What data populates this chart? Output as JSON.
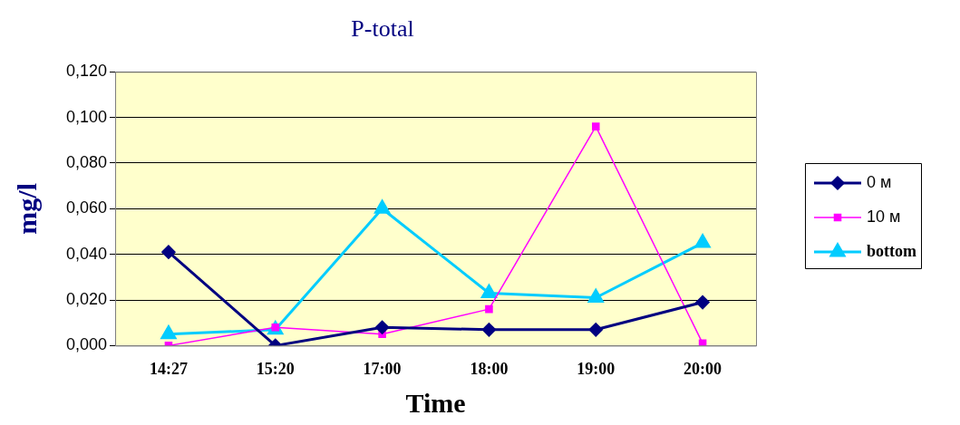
{
  "chart_data": {
    "type": "line",
    "title": "P-total",
    "xlabel": "Time",
    "ylabel": "mg/l",
    "categories": [
      "14:27",
      "15:20",
      "17:00",
      "18:00",
      "19:00",
      "20:00"
    ],
    "series": [
      {
        "name": "0 м",
        "color": "#000080",
        "marker": "diamond",
        "values": [
          0.041,
          0,
          0.008,
          0.007,
          0.007,
          0.019
        ]
      },
      {
        "name": "10 м",
        "color": "#ff00ff",
        "marker": "square",
        "values": [
          0,
          0.008,
          0.005,
          0.016,
          0.096,
          0.001
        ]
      },
      {
        "name": "bottom",
        "color": "#00ccff",
        "marker": "triangle",
        "values": [
          0.005,
          0.007,
          0.06,
          0.023,
          0.021,
          0.045
        ]
      }
    ],
    "ylim": [
      0,
      0.12
    ],
    "yticks": [
      {
        "value": 0,
        "label": "0,000"
      },
      {
        "value": 0.02,
        "label": "0,020"
      },
      {
        "value": 0.04,
        "label": "0,040"
      },
      {
        "value": 0.06,
        "label": "0,060"
      },
      {
        "value": 0.08,
        "label": "0,080"
      },
      {
        "value": 0.1,
        "label": "0,100"
      },
      {
        "value": 0.12,
        "label": "0,120"
      }
    ],
    "grid": "y",
    "legend": "right"
  }
}
